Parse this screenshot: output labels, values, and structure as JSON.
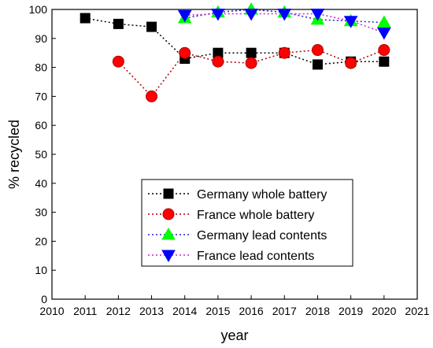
{
  "chart_data": {
    "type": "scatter",
    "title": "",
    "xlabel": "year",
    "ylabel": "% recycled",
    "xlim": [
      2010,
      2021
    ],
    "ylim": [
      0,
      100
    ],
    "x_ticks": [
      2010,
      2011,
      2012,
      2013,
      2014,
      2015,
      2016,
      2017,
      2018,
      2019,
      2020,
      2021
    ],
    "y_ticks": [
      0,
      10,
      20,
      30,
      40,
      50,
      60,
      70,
      80,
      90,
      100
    ],
    "grid": false,
    "legend_position": "bottom-right",
    "series": [
      {
        "name": "Germany whole battery",
        "marker": "square",
        "color": "#000000",
        "line_color": "#000000",
        "x": [
          2011,
          2012,
          2013,
          2014,
          2015,
          2016,
          2017,
          2018,
          2019,
          2020
        ],
        "y": [
          97,
          95,
          94,
          83,
          85,
          85,
          85,
          81,
          82,
          82
        ]
      },
      {
        "name": "France whole battery",
        "marker": "circle",
        "color": "#ff0000",
        "line_color": "#b00000",
        "x": [
          2012,
          2013,
          2014,
          2015,
          2016,
          2017,
          2018,
          2019,
          2020
        ],
        "y": [
          82,
          70,
          85,
          82,
          81.5,
          85,
          86,
          81.5,
          86
        ]
      },
      {
        "name": "Germany lead contents",
        "marker": "triangle-up",
        "color": "#00ff00",
        "line_color": "#2222cc",
        "x": [
          2014,
          2015,
          2016,
          2017,
          2018,
          2019,
          2020
        ],
        "y": [
          97,
          99,
          100,
          99,
          96.5,
          96,
          95.5
        ]
      },
      {
        "name": "France lead contents",
        "marker": "triangle-down",
        "color": "#0000ff",
        "line_color": "#cc22cc",
        "x": [
          2014,
          2015,
          2016,
          2017,
          2018,
          2019,
          2020
        ],
        "y": [
          98,
          98.5,
          98.5,
          98.5,
          98.5,
          96,
          92
        ]
      }
    ]
  }
}
